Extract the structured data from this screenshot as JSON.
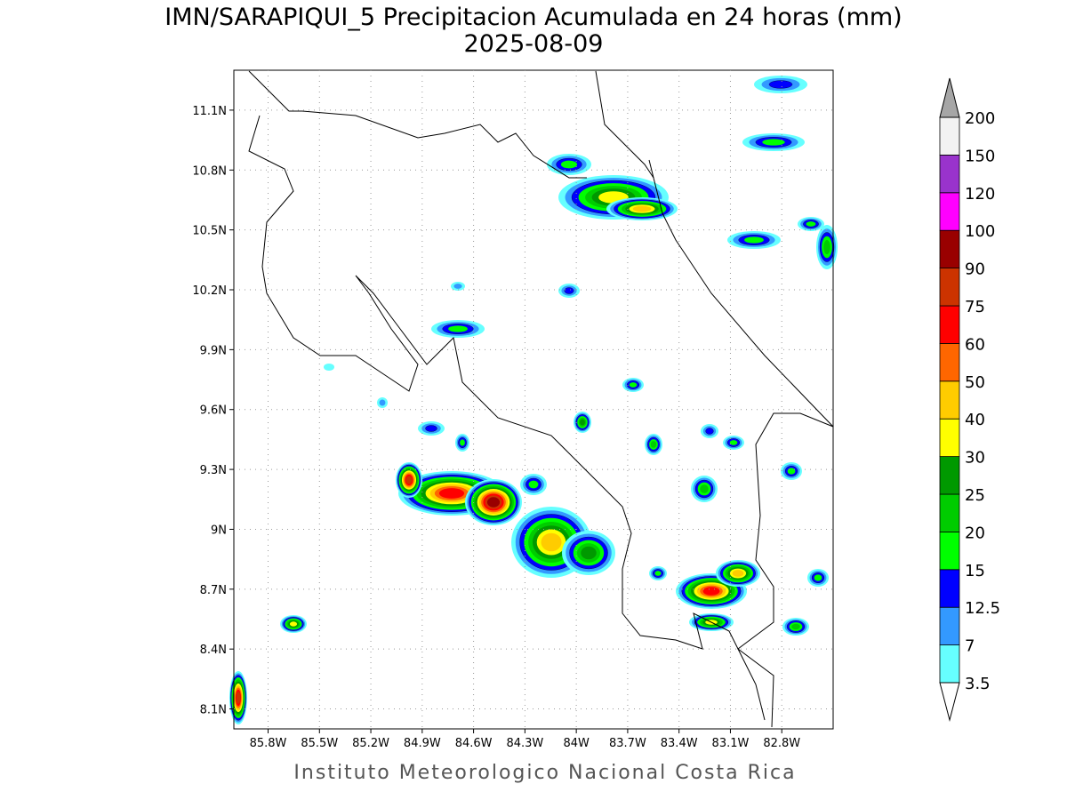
{
  "map": {
    "title": "IMN/SARAPIQUI_5 Precipitacion Acumulada en 24 horas (mm)",
    "subtitle": "2025-08-09",
    "footer": "Instituto Meteorologico Nacional Costa Rica",
    "lon_range": [
      -86.0,
      -82.5
    ],
    "lat_range": [
      8.0,
      11.3
    ],
    "lon_ticks": [
      {
        "value": -85.8,
        "label": "85.8W"
      },
      {
        "value": -85.5,
        "label": "85.5W"
      },
      {
        "value": -85.2,
        "label": "85.2W"
      },
      {
        "value": -84.9,
        "label": "84.9W"
      },
      {
        "value": -84.6,
        "label": "84.6W"
      },
      {
        "value": -84.3,
        "label": "84.3W"
      },
      {
        "value": -84.0,
        "label": "84W"
      },
      {
        "value": -83.7,
        "label": "83.7W"
      },
      {
        "value": -83.4,
        "label": "83.4W"
      },
      {
        "value": -83.1,
        "label": "83.1W"
      },
      {
        "value": -82.8,
        "label": "82.8W"
      }
    ],
    "lat_ticks": [
      {
        "value": 8.1,
        "label": "8.1N"
      },
      {
        "value": 8.4,
        "label": "8.4N"
      },
      {
        "value": 8.7,
        "label": "8.7N"
      },
      {
        "value": 9.0,
        "label": "9N"
      },
      {
        "value": 9.3,
        "label": "9.3N"
      },
      {
        "value": 9.6,
        "label": "9.6N"
      },
      {
        "value": 9.9,
        "label": "9.9N"
      },
      {
        "value": 10.2,
        "label": "10.2N"
      },
      {
        "value": 10.5,
        "label": "10.5N"
      },
      {
        "value": 10.8,
        "label": "10.8N"
      },
      {
        "value": 11.1,
        "label": "11.1N"
      }
    ],
    "grid": true,
    "colorbar": {
      "levels": [
        3.5,
        7,
        12.5,
        15,
        20,
        25,
        30,
        40,
        50,
        60,
        75,
        90,
        100,
        120,
        150,
        200
      ],
      "colors": [
        "#66ffff",
        "#3399ff",
        "#0000ff",
        "#00ff00",
        "#00cc00",
        "#009900",
        "#ffff00",
        "#ffcc00",
        "#ff6600",
        "#ff0000",
        "#cc3300",
        "#990000",
        "#ff00ff",
        "#9933cc",
        "#f2f2f2"
      ],
      "over_color": "#a6a6a6",
      "under_color": "#ffffff"
    }
  }
}
